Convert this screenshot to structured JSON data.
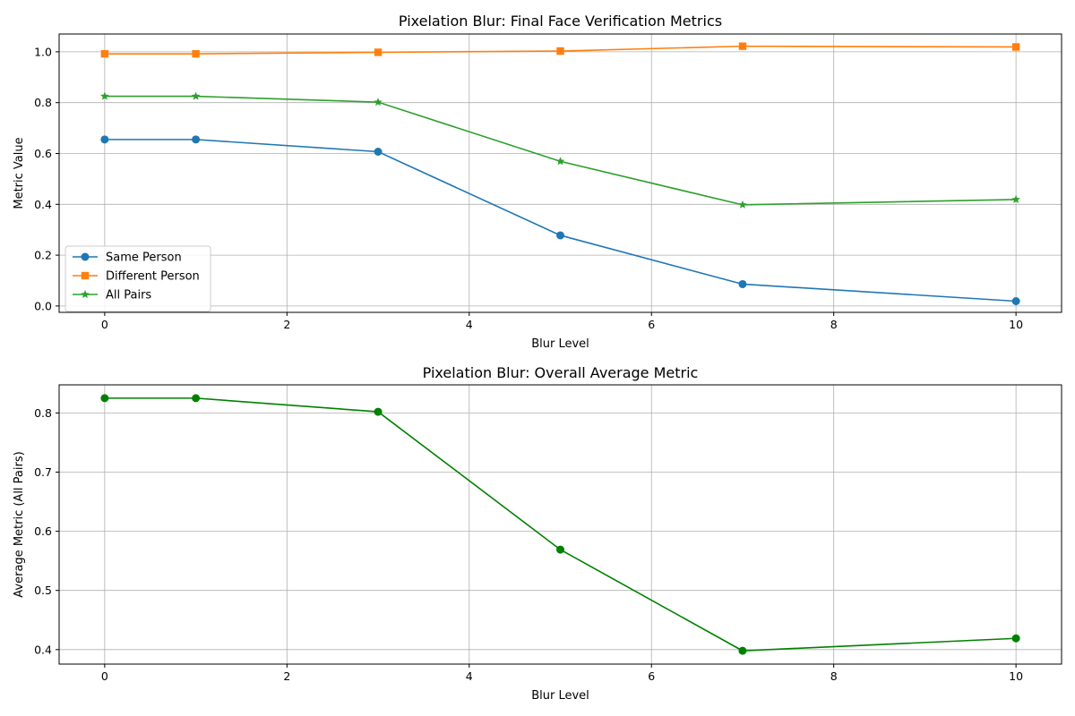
{
  "chart_data": [
    {
      "type": "line",
      "title": "Pixelation Blur: Final Face Verification Metrics",
      "xlabel": "Blur Level",
      "ylabel": "Metric Value",
      "xlim": [
        -0.5,
        10.5
      ],
      "ylim": [
        -0.025,
        1.07
      ],
      "xticks": [
        0,
        2,
        4,
        6,
        8,
        10
      ],
      "xtick_labels": [
        "0",
        "2",
        "4",
        "6",
        "8",
        "10"
      ],
      "yticks": [
        0.0,
        0.2,
        0.4,
        0.6,
        0.8,
        1.0
      ],
      "ytick_labels": [
        "0.0",
        "0.2",
        "0.4",
        "0.6",
        "0.8",
        "1.0"
      ],
      "grid": true,
      "legend_position": "lower-left",
      "x": [
        0,
        1,
        3,
        5,
        7,
        10
      ],
      "series": [
        {
          "name": "Same Person",
          "color": "#1f77b4",
          "marker": "circle",
          "values": [
            0.655,
            0.655,
            0.607,
            0.278,
            0.086,
            0.019
          ]
        },
        {
          "name": "Different Person",
          "color": "#ff7f0e",
          "marker": "square",
          "values": [
            0.992,
            0.992,
            0.998,
            1.003,
            1.022,
            1.019
          ]
        },
        {
          "name": "All Pairs",
          "color": "#2ca02c",
          "marker": "star",
          "values": [
            0.825,
            0.825,
            0.802,
            0.569,
            0.398,
            0.419
          ]
        }
      ]
    },
    {
      "type": "line",
      "title": "Pixelation Blur: Overall Average Metric",
      "xlabel": "Blur Level",
      "ylabel": "Average Metric (All Pairs)",
      "xlim": [
        -0.5,
        10.5
      ],
      "ylim": [
        0.3755,
        0.8475
      ],
      "xticks": [
        0,
        2,
        4,
        6,
        8,
        10
      ],
      "xtick_labels": [
        "0",
        "2",
        "4",
        "6",
        "8",
        "10"
      ],
      "yticks": [
        0.4,
        0.5,
        0.6,
        0.7,
        0.8
      ],
      "ytick_labels": [
        "0.4",
        "0.5",
        "0.6",
        "0.7",
        "0.8"
      ],
      "grid": true,
      "x": [
        0,
        1,
        3,
        5,
        7,
        10
      ],
      "series": [
        {
          "color": "#008000",
          "marker": "circle",
          "values": [
            0.825,
            0.825,
            0.802,
            0.569,
            0.398,
            0.419
          ]
        }
      ]
    }
  ]
}
